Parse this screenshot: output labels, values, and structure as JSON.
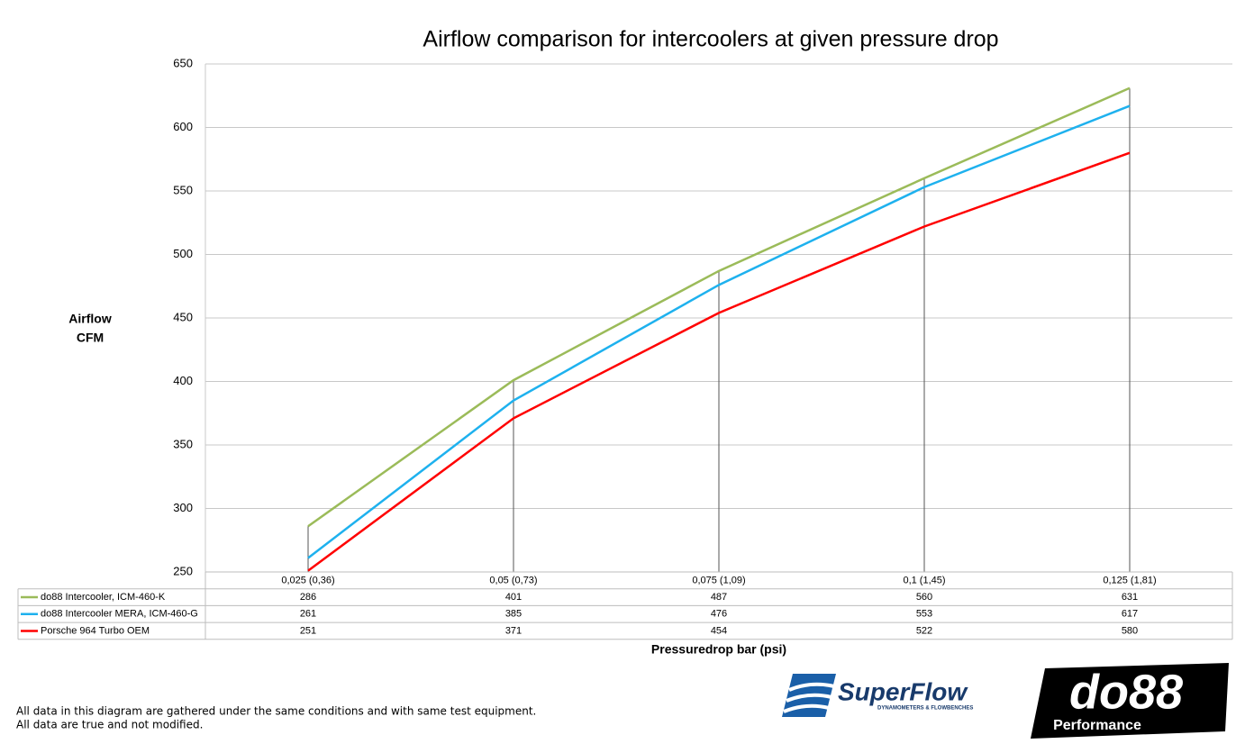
{
  "chart_data": {
    "type": "line",
    "title": "Airflow comparison for intercoolers at given pressure drop",
    "ylabel": [
      "Airflow",
      "CFM"
    ],
    "xlabel": "Pressuredrop bar (psi)",
    "categories": [
      "0,025 (0,36)",
      "0,05 (0,73)",
      "0,075 (1,09)",
      "0,1 (1,45)",
      "0,125 (1,81)"
    ],
    "series": [
      {
        "name": "do88 Intercooler, ICM-460-K",
        "color": "#9bbb59",
        "values": [
          286,
          401,
          487,
          560,
          631
        ]
      },
      {
        "name": "do88 Intercooler MERA, ICM-460-G",
        "color": "#1eb1ee",
        "values": [
          261,
          385,
          476,
          553,
          617
        ]
      },
      {
        "name": "Porsche 964 Turbo OEM",
        "color": "#ff0000",
        "values": [
          251,
          371,
          454,
          522,
          580
        ]
      }
    ],
    "ylim": [
      250,
      650
    ],
    "yticks": [
      250,
      300,
      350,
      400,
      450,
      500,
      550,
      600,
      650
    ],
    "grid": true,
    "data_table": true,
    "footnote": [
      "All data in this diagram are gathered under the same conditions and with same test equipment.",
      "All data are true and not modified."
    ],
    "logos": {
      "superflow": "SuperFlow",
      "superflow_tagline": "DYNAMOMETERS & FLOWBENCHES",
      "do88": "do88",
      "do88_tagline": "Performance"
    }
  }
}
